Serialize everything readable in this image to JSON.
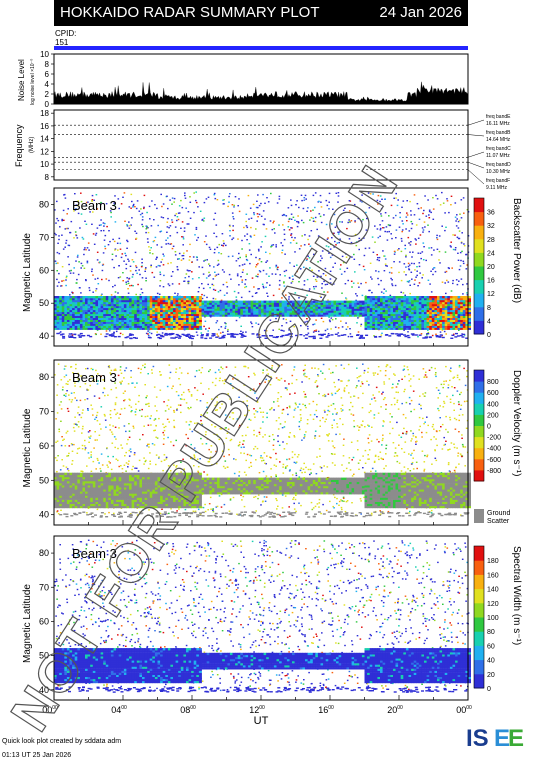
{
  "header": {
    "title": "HOKKAIDO RADAR SUMMARY PLOT",
    "date": "24 Jan 2026",
    "cpid_label": "CPID:",
    "cpid_value": "151"
  },
  "noise_panel": {
    "ylabel": "Noise Level",
    "ylabel_sub": "log noise level ×10⁻⁰",
    "yticks": [
      "0",
      "2",
      "4",
      "6",
      "8",
      "10"
    ],
    "ylim": [
      0,
      10
    ]
  },
  "frequency_panel": {
    "ylabel": "Frequency",
    "ylabel_unit": "(MHz)",
    "yticks": [
      "8",
      "10",
      "12",
      "14",
      "16",
      "18"
    ],
    "ylim": [
      7.5,
      18.5
    ],
    "bands": [
      {
        "name": "freq bandE",
        "value": "16.11 MHz",
        "mhz": 16.11
      },
      {
        "name": "freq bandB",
        "value": "14.64 MHz",
        "mhz": 14.64
      },
      {
        "name": "freq bandC",
        "value": "11.07 MHz",
        "mhz": 11.07
      },
      {
        "name": "freq bandD",
        "value": "10.30 MHz",
        "mhz": 10.3
      },
      {
        "name": "freq bandF",
        "value": "9.11 MHz",
        "mhz": 9.11
      }
    ]
  },
  "panels": [
    {
      "beam": "Beam  3",
      "ylabel": "Magnetic Latitude",
      "yticks": [
        "40",
        "50",
        "60",
        "70",
        "80"
      ],
      "colorbar_title": "Backscatter Power (dB)",
      "colorbar_ticks": [
        "0",
        "4",
        "8",
        "12",
        "16",
        "20",
        "24",
        "28",
        "32",
        "36"
      ],
      "colorbar_colors": [
        "#2f2fd6",
        "#2f6fe8",
        "#20b0f0",
        "#18d0b0",
        "#30c840",
        "#90d820",
        "#e0e020",
        "#f8b010",
        "#f86010",
        "#e01010"
      ]
    },
    {
      "beam": "Beam  3",
      "ylabel": "Magnetic Latitude",
      "yticks": [
        "40",
        "50",
        "60",
        "70",
        "80"
      ],
      "colorbar_title": "Doppler Velocity (m s⁻¹)",
      "colorbar_ticks": [
        "-800",
        "-600",
        "-400",
        "-200",
        "0",
        "200",
        "400",
        "600",
        "800"
      ],
      "colorbar_colors": [
        "#e01010",
        "#f86010",
        "#f8b010",
        "#e0e020",
        "#90d820",
        "#30c840",
        "#18d0b0",
        "#20b0f0",
        "#2f6fe8",
        "#2f2fd6"
      ],
      "ground_label": "Ground",
      "scatter_label": "Scatter",
      "ground_color": "#8c8c8c"
    },
    {
      "beam": "Beam  3",
      "ylabel": "Magnetic Latitude",
      "yticks": [
        "40",
        "50",
        "60",
        "70",
        "80"
      ],
      "colorbar_title": "Spectral Width (m s⁻¹)",
      "colorbar_ticks": [
        "0",
        "20",
        "40",
        "60",
        "80",
        "100",
        "120",
        "140",
        "160",
        "180"
      ],
      "colorbar_colors": [
        "#2f2fd6",
        "#2f6fe8",
        "#20b0f0",
        "#18d0b0",
        "#30c840",
        "#90d820",
        "#e0e020",
        "#f8b010",
        "#f86010",
        "#e01010"
      ]
    }
  ],
  "xaxis": {
    "ticks": [
      "00",
      "04",
      "08",
      "12",
      "16",
      "20",
      "00"
    ],
    "tick_sup": "00",
    "label": "UT"
  },
  "chart_data": {
    "type": "heatmap",
    "title": "HOKKAIDO RADAR SUMMARY PLOT",
    "xlabel": "UT",
    "xlim": [
      "00:00",
      "24:00"
    ],
    "ylabel": "Magnetic Latitude",
    "ylim": [
      37,
      85
    ],
    "series": [
      {
        "name": "Backscatter Power (dB)",
        "range": [
          0,
          36
        ],
        "main_band_lat": [
          42,
          52
        ],
        "peak_times_ut": [
          "07:00",
          "22:30"
        ]
      },
      {
        "name": "Doppler Velocity (m s⁻¹)",
        "range": [
          -800,
          800
        ],
        "ground_scatter_lat": [
          43,
          52
        ]
      },
      {
        "name": "Spectral Width (m s⁻¹)",
        "range": [
          0,
          180
        ],
        "main_band_lat": [
          42,
          52
        ]
      }
    ]
  },
  "watermark": "NOT FOR PUBLICATION",
  "footer": {
    "credit": "Quick look plot created by sddata adm",
    "time": "01:13 UT 25 Jan 2026",
    "logo": "ISEE",
    "logo_colors": [
      "#1a3d8f",
      "#2a8ed6",
      "#3aaa35"
    ]
  }
}
